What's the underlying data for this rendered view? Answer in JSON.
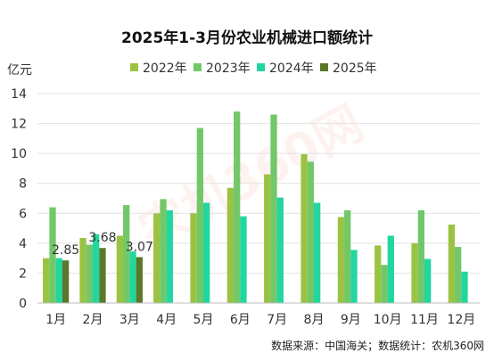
{
  "chart_data": {
    "type": "bar",
    "title": "2025年1-3月份农业机械进口额统计",
    "ylabel": "亿元",
    "ylim": [
      0,
      14
    ],
    "yticks": [
      0,
      2,
      4,
      6,
      8,
      10,
      12,
      14
    ],
    "grid": true,
    "legend_position": "top",
    "categories": [
      "1月",
      "2月",
      "3月",
      "4月",
      "5月",
      "6月",
      "7月",
      "8月",
      "9月",
      "10月",
      "11月",
      "12月"
    ],
    "series": [
      {
        "name": "2022年",
        "color": "#9bc343",
        "values": [
          3.0,
          4.35,
          4.5,
          6.0,
          6.0,
          7.7,
          8.6,
          9.95,
          5.75,
          3.85,
          4.0,
          5.25
        ]
      },
      {
        "name": "2023年",
        "color": "#72c868",
        "values": [
          6.4,
          3.9,
          6.55,
          6.95,
          11.7,
          12.8,
          12.6,
          9.45,
          6.2,
          2.55,
          6.2,
          3.75
        ]
      },
      {
        "name": "2024年",
        "color": "#22d6a0",
        "values": [
          3.0,
          4.6,
          3.45,
          6.2,
          6.7,
          5.8,
          7.05,
          6.7,
          3.55,
          4.5,
          2.95,
          2.1
        ]
      },
      {
        "name": "2025年",
        "color": "#5a7828",
        "values": [
          2.85,
          3.68,
          3.07,
          null,
          null,
          null,
          null,
          null,
          null,
          null,
          null,
          null
        ]
      }
    ],
    "data_labels": [
      {
        "series": "2025年",
        "category": "1月",
        "text": "2.85"
      },
      {
        "series": "2025年",
        "category": "2月",
        "text": "3.68"
      },
      {
        "series": "2025年",
        "category": "3月",
        "text": "3.07"
      }
    ]
  },
  "source_note": "数据来源：中国海关；数据统计：农机360网",
  "watermark_text": "农机360网"
}
